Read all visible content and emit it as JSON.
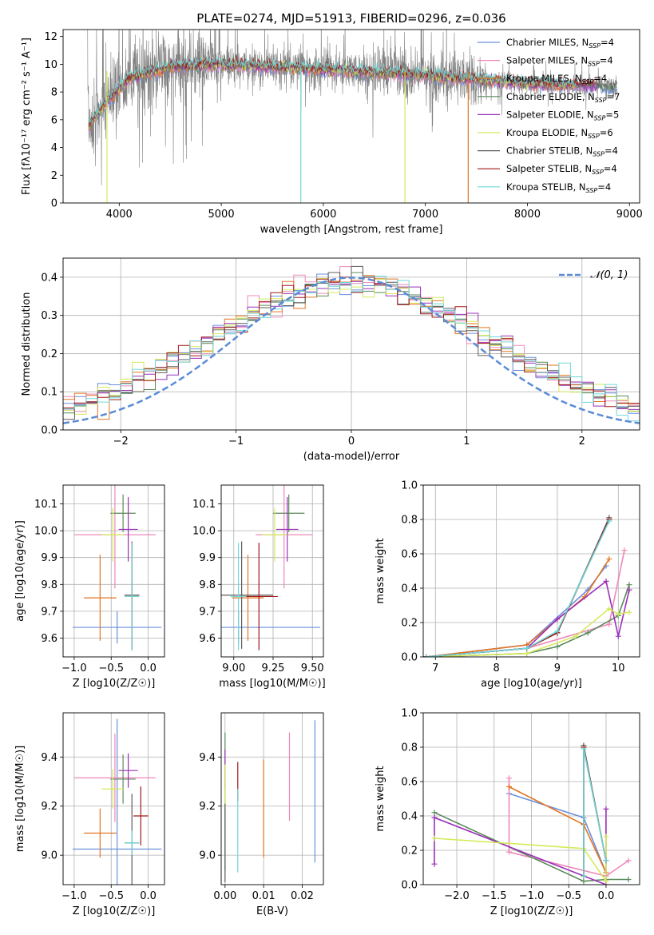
{
  "title": "PLATE=0274, MJD=51913, FIBERID=0296, z=0.036",
  "colors": {
    "Chabrier MILES": "#6a8fdc",
    "Salpeter MILES": "#ee88bb",
    "Kroupa MILES": "#e37522",
    "Chabrier ELODIE": "#5a8a5a",
    "Salpeter ELODIE": "#9b30b8",
    "Kroupa ELODIE": "#d4ea5a",
    "Chabrier STELIB": "#5c5c5c",
    "Salpeter STELIB": "#a01818",
    "Kroupa STELIB": "#70d8d8",
    "normal_curve": "#5b8bd6",
    "grid": "#b0b0b0",
    "data_spectrum": "#808080"
  },
  "legend": [
    {
      "label": "Chabrier MILES, N",
      "sub": "SSP",
      "suffix": "=4",
      "key": "Chabrier MILES"
    },
    {
      "label": "Salpeter MILES, N",
      "sub": "SSP",
      "suffix": "=4",
      "key": "Salpeter MILES"
    },
    {
      "label": "Kroupa MILES, N",
      "sub": "SSP",
      "suffix": "=4",
      "key": "Kroupa MILES"
    },
    {
      "label": "Chabrier ELODIE, N",
      "sub": "SSP",
      "suffix": "=7",
      "key": "Chabrier ELODIE"
    },
    {
      "label": "Salpeter ELODIE, N",
      "sub": "SSP",
      "suffix": "=5",
      "key": "Salpeter ELODIE"
    },
    {
      "label": "Kroupa ELODIE, N",
      "sub": "SSP",
      "suffix": "=6",
      "key": "Kroupa ELODIE"
    },
    {
      "label": "Chabrier STELIB, N",
      "sub": "SSP",
      "suffix": "=4",
      "key": "Chabrier STELIB"
    },
    {
      "label": "Salpeter STELIB, N",
      "sub": "SSP",
      "suffix": "=4",
      "key": "Salpeter STELIB"
    },
    {
      "label": "Kroupa STELIB, N",
      "sub": "SSP",
      "suffix": "=4",
      "key": "Kroupa STELIB"
    }
  ],
  "chart_data": [
    {
      "type": "line",
      "xlabel": "wavelength [Angstrom, rest frame]",
      "ylabel": "Flux [fλ10⁻¹⁷ erg cm⁻² s⁻¹ A⁻¹]",
      "xlim": [
        3450,
        9100
      ],
      "ylim": [
        0,
        12.5
      ],
      "xticks": [
        "4000",
        "5000",
        "6000",
        "7000",
        "8000",
        "9000"
      ],
      "yticks": [
        "0",
        "2",
        "4",
        "6",
        "8",
        "10",
        "12"
      ],
      "grid": false,
      "legend_placement": "top-right",
      "data_range": [
        3690,
        8880
      ],
      "approx_continuum": [
        [
          3700,
          5.5
        ],
        [
          3900,
          7.5
        ],
        [
          4100,
          9.0
        ],
        [
          4500,
          9.8
        ],
        [
          5000,
          10.0
        ],
        [
          6000,
          9.6
        ],
        [
          7000,
          9.2
        ],
        [
          8000,
          8.6
        ],
        [
          8800,
          8.4
        ]
      ]
    },
    {
      "type": "line",
      "xlabel": "(data-model)/error",
      "ylabel": "Normed distribution",
      "xlim": [
        -2.5,
        2.5
      ],
      "ylim": [
        0,
        0.45
      ],
      "xticks": [
        "−2",
        "−1",
        "0",
        "1",
        "2"
      ],
      "yticks": [
        "0.0",
        "0.1",
        "0.2",
        "0.3",
        "0.4"
      ],
      "grid": true,
      "legend": "𝒩(0, 1)",
      "legend_placement": "top-right",
      "bin_width": 0.1,
      "curve": "normal(0,1)"
    },
    {
      "type": "scatter",
      "xlabel": "Z [log10(Z/Z☉)]",
      "ylabel": "age  [log10(age/yr)]",
      "xlim": [
        -1.15,
        0.22
      ],
      "ylim": [
        9.53,
        10.17
      ],
      "xticks": [
        "−1.0",
        "−0.5",
        "0.0"
      ],
      "yticks": [
        "9.6",
        "9.7",
        "9.8",
        "9.9",
        "10.0",
        "10.1"
      ],
      "grid": true,
      "points": [
        {
          "model": "Chabrier MILES",
          "x": -0.42,
          "xerr": 0.6,
          "y": 9.64,
          "yerr": 0.06
        },
        {
          "model": "Salpeter MILES",
          "x": -0.45,
          "xerr": 0.55,
          "y": 9.985,
          "yerr": 0.2
        },
        {
          "model": "Kroupa MILES",
          "x": -0.65,
          "xerr": 0.22,
          "y": 9.75,
          "yerr": 0.16
        },
        {
          "model": "Chabrier ELODIE",
          "x": -0.34,
          "xerr": 0.17,
          "y": 10.065,
          "yerr": 0.07
        },
        {
          "model": "Salpeter ELODIE",
          "x": -0.27,
          "xerr": 0.13,
          "y": 10.005,
          "yerr": 0.12
        },
        {
          "model": "Kroupa ELODIE",
          "x": -0.48,
          "xerr": 0.15,
          "y": 9.985,
          "yerr": 0.1
        },
        {
          "model": "Chabrier STELIB",
          "x": -0.22,
          "xerr": 0.1,
          "y": 9.76,
          "yerr": 0.2
        },
        {
          "model": "Salpeter STELIB",
          "x": -0.22,
          "xerr": 0.1,
          "y": 9.755,
          "yerr": 0.2
        },
        {
          "model": "Kroupa STELIB",
          "x": -0.22,
          "xerr": 0.1,
          "y": 9.755,
          "yerr": 0.2
        }
      ]
    },
    {
      "type": "scatter",
      "xlabel": "mass [log10(M/M☉)]",
      "ylabel": "",
      "xlim": [
        8.92,
        9.57
      ],
      "ylim": [
        9.53,
        10.17
      ],
      "xticks": [
        "9.00",
        "9.25",
        "9.50"
      ],
      "yticks": [
        "9.6",
        "9.7",
        "9.8",
        "9.9",
        "10.0",
        "10.1"
      ],
      "grid": true,
      "points": [
        {
          "model": "Chabrier MILES",
          "x": 9.03,
          "xerr": 0.52,
          "y": 9.64,
          "yerr": 0.06
        },
        {
          "model": "Salpeter MILES",
          "x": 9.32,
          "xerr": 0.18,
          "y": 9.985,
          "yerr": 0.2
        },
        {
          "model": "Kroupa MILES",
          "x": 9.09,
          "xerr": 0.1,
          "y": 9.75,
          "yerr": 0.16
        },
        {
          "model": "Chabrier ELODIE",
          "x": 9.35,
          "xerr": 0.1,
          "y": 10.065,
          "yerr": 0.07
        },
        {
          "model": "Salpeter ELODIE",
          "x": 9.34,
          "xerr": 0.07,
          "y": 10.005,
          "yerr": 0.12
        },
        {
          "model": "Kroupa ELODIE",
          "x": 9.26,
          "xerr": 0.08,
          "y": 9.985,
          "yerr": 0.1
        },
        {
          "model": "Chabrier STELIB",
          "x": 9.05,
          "xerr": 0.2,
          "y": 9.76,
          "yerr": 0.2
        },
        {
          "model": "Salpeter STELIB",
          "x": 9.16,
          "xerr": 0.12,
          "y": 9.755,
          "yerr": 0.2
        },
        {
          "model": "Kroupa STELIB",
          "x": 9.03,
          "xerr": 0.05,
          "y": 9.755,
          "yerr": 0.2
        }
      ]
    },
    {
      "type": "line",
      "xlabel": "age  [log10(age/yr)]",
      "ylabel": "mass weight",
      "xlim": [
        6.8,
        10.35
      ],
      "ylim": [
        0,
        1.0
      ],
      "xticks": [
        "7",
        "8",
        "9",
        "10"
      ],
      "yticks": [
        "0.0",
        "0.2",
        "0.4",
        "0.6",
        "0.8",
        "1.0"
      ],
      "grid": true,
      "series": [
        {
          "model": "Chabrier MILES",
          "x": [
            6.85,
            8.5,
            9.5,
            9.8
          ],
          "y": [
            0.0,
            0.07,
            0.39,
            0.53
          ]
        },
        {
          "model": "Salpeter MILES",
          "x": [
            6.85,
            8.5,
            9.85,
            10.1
          ],
          "y": [
            0.0,
            0.05,
            0.19,
            0.62
          ]
        },
        {
          "model": "Kroupa MILES",
          "x": [
            6.85,
            8.5,
            9.45,
            9.85
          ],
          "y": [
            0.0,
            0.07,
            0.35,
            0.57
          ]
        },
        {
          "model": "Chabrier ELODIE",
          "x": [
            6.85,
            8.5,
            9.0,
            9.5,
            10.0,
            10.18
          ],
          "y": [
            0.0,
            0.02,
            0.06,
            0.14,
            0.24,
            0.42
          ]
        },
        {
          "model": "Salpeter ELODIE",
          "x": [
            6.85,
            8.5,
            9.0,
            9.8,
            10.0,
            10.18
          ],
          "y": [
            0.0,
            0.05,
            0.22,
            0.44,
            0.12,
            0.39
          ]
        },
        {
          "model": "Kroupa ELODIE",
          "x": [
            6.85,
            8.5,
            9.3,
            9.85,
            10.0,
            10.18
          ],
          "y": [
            0.0,
            0.02,
            0.12,
            0.28,
            0.25,
            0.26
          ]
        },
        {
          "model": "Chabrier STELIB",
          "x": [
            6.85,
            8.5,
            9.0,
            9.85
          ],
          "y": [
            0.0,
            0.05,
            0.14,
            0.81
          ]
        },
        {
          "model": "Salpeter STELIB",
          "x": [
            6.85,
            8.5,
            9.0,
            9.85
          ],
          "y": [
            0.0,
            0.05,
            0.14,
            0.8
          ]
        },
        {
          "model": "Kroupa STELIB",
          "x": [
            6.85,
            8.5,
            9.0,
            9.85
          ],
          "y": [
            0.0,
            0.05,
            0.15,
            0.79
          ]
        }
      ]
    },
    {
      "type": "scatter",
      "xlabel": "Z [log10(Z/Z☉)]",
      "ylabel": "mass [log10(M/M☉)]",
      "xlim": [
        -1.15,
        0.22
      ],
      "ylim": [
        8.88,
        9.58
      ],
      "xticks": [
        "−1.0",
        "−0.5",
        "0.0"
      ],
      "yticks": [
        "9.0",
        "9.2",
        "9.4"
      ],
      "grid": true,
      "points": [
        {
          "model": "Chabrier MILES",
          "x": -0.42,
          "xerr": 0.6,
          "y": 9.025,
          "yerr": 0.53
        },
        {
          "model": "Salpeter MILES",
          "x": -0.45,
          "xerr": 0.55,
          "y": 9.315,
          "yerr": 0.18
        },
        {
          "model": "Kroupa MILES",
          "x": -0.65,
          "xerr": 0.22,
          "y": 9.09,
          "yerr": 0.1
        },
        {
          "model": "Chabrier ELODIE",
          "x": -0.34,
          "xerr": 0.17,
          "y": 9.31,
          "yerr": 0.1
        },
        {
          "model": "Salpeter ELODIE",
          "x": -0.27,
          "xerr": 0.13,
          "y": 9.345,
          "yerr": 0.07
        },
        {
          "model": "Kroupa ELODIE",
          "x": -0.48,
          "xerr": 0.15,
          "y": 9.27,
          "yerr": 0.08
        },
        {
          "model": "Chabrier STELIB",
          "x": -0.22,
          "xerr": 0.1,
          "y": 9.05,
          "yerr": 0.2
        },
        {
          "model": "Salpeter STELIB",
          "x": -0.1,
          "xerr": 0.1,
          "y": 9.16,
          "yerr": 0.12
        },
        {
          "model": "Kroupa STELIB",
          "x": -0.22,
          "xerr": 0.1,
          "y": 9.05,
          "yerr": 0.05
        }
      ]
    },
    {
      "type": "scatter",
      "xlabel": "E(B-V)",
      "ylabel": "",
      "xlim": [
        -0.001,
        0.0255
      ],
      "ylim": [
        8.88,
        9.58
      ],
      "xticks": [
        "0.00",
        "0.01",
        "0.02"
      ],
      "yticks": [
        "9.0",
        "9.2",
        "9.4"
      ],
      "grid": true,
      "points": [
        {
          "model": "Chabrier MILES",
          "x": 0.0233,
          "y": 9.26,
          "yerr": 0.29
        },
        {
          "model": "Salpeter MILES",
          "x": 0.0167,
          "y": 9.32,
          "yerr": 0.18
        },
        {
          "model": "Kroupa MILES",
          "x": 0.01,
          "y": 9.19,
          "yerr": 0.2
        },
        {
          "model": "Chabrier ELODIE",
          "x": 0.0,
          "y": 9.22,
          "yerr": 0.28
        },
        {
          "model": "Salpeter ELODIE",
          "x": 0.0,
          "y": 9.35,
          "yerr": 0.08
        },
        {
          "model": "Kroupa ELODIE",
          "x": 0.0,
          "y": 9.28,
          "yerr": 0.09
        },
        {
          "model": "Chabrier STELIB",
          "x": 0.0,
          "y": 9.05,
          "yerr": 0.16
        },
        {
          "model": "Salpeter STELIB",
          "x": 0.0033,
          "y": 9.3,
          "yerr": 0.08
        },
        {
          "model": "Kroupa STELIB",
          "x": 0.0033,
          "y": 9.1,
          "yerr": 0.17
        }
      ]
    },
    {
      "type": "line",
      "xlabel": "Z [log10(Z/Z☉)]",
      "ylabel": "mass weight",
      "xlim": [
        -2.45,
        0.45
      ],
      "ylim": [
        0,
        1.0
      ],
      "xticks": [
        "−2.0",
        "−1.5",
        "−1.0",
        "−0.5",
        "0.0"
      ],
      "yticks": [
        "0.0",
        "0.2",
        "0.4",
        "0.6",
        "0.8",
        "1.0"
      ],
      "grid": true,
      "series": [
        {
          "model": "Chabrier MILES",
          "x": [
            -1.3,
            -0.3,
            0.0
          ],
          "y": [
            0.53,
            0.39,
            0.07
          ]
        },
        {
          "model": "Salpeter MILES",
          "x": [
            -1.3,
            -1.3,
            0.0,
            0.3
          ],
          "y": [
            0.62,
            0.19,
            0.05,
            0.14
          ]
        },
        {
          "model": "Kroupa MILES",
          "x": [
            -1.3,
            -0.3,
            0.0
          ],
          "y": [
            0.57,
            0.35,
            0.07
          ]
        },
        {
          "model": "Chabrier ELODIE",
          "x": [
            -2.3,
            -0.3,
            0.0,
            0.3
          ],
          "y": [
            0.42,
            0.02,
            0.03,
            0.03
          ]
        },
        {
          "model": "Salpeter ELODIE",
          "x": [
            -2.3,
            -2.3,
            0.0,
            0.0
          ],
          "y": [
            0.12,
            0.39,
            0.0,
            0.44
          ]
        },
        {
          "model": "Kroupa ELODIE",
          "x": [
            -2.3,
            -0.3,
            0.0,
            0.0
          ],
          "y": [
            0.27,
            0.21,
            0.02,
            0.28
          ]
        },
        {
          "model": "Chabrier STELIB",
          "x": [
            -0.3,
            -0.3,
            0.0
          ],
          "y": [
            0.05,
            0.81,
            0.14
          ]
        },
        {
          "model": "Salpeter STELIB",
          "x": [
            -0.3,
            -0.3,
            0.0
          ],
          "y": [
            0.05,
            0.8,
            0.14
          ]
        },
        {
          "model": "Kroupa STELIB",
          "x": [
            -0.3,
            -0.3,
            0.0
          ],
          "y": [
            0.05,
            0.79,
            0.14
          ]
        }
      ]
    }
  ]
}
